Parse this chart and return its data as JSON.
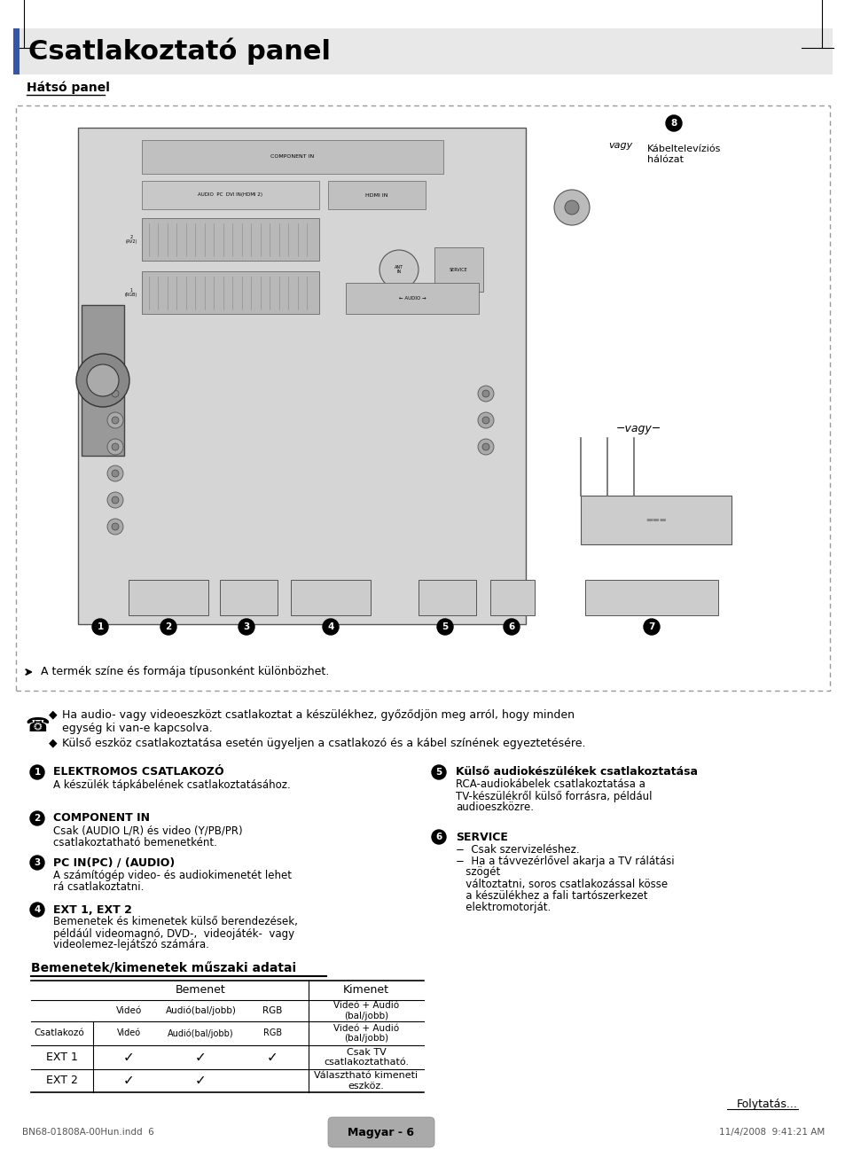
{
  "title": "Csatlakoztató panel",
  "bg_color": "#ffffff",
  "section_label": "Hátsó panel",
  "note_line1": "Ha audio- vagy videoeszközt csatlakoztat a készülékhez, győződjön meg arról, hogy minden",
  "note_line2": "egység ki van-e kapcsolva.",
  "note_line3": "Külső eszköz csatlakoztatása esetén ügyeljen a csatlakozó és a kábel színének egyeztetésére.",
  "items_left": [
    {
      "num": "1",
      "bold": "ELEKTROMOS CSATLAKOZÓ",
      "text": "A készülék tápkábelének csatlakoztatásához."
    },
    {
      "num": "2",
      "bold": "COMPONENT IN",
      "text": "Csak (AUDIO L/R) és video (Y/PB/PR)\ncsatlakoztatható bemenetként."
    },
    {
      "num": "3",
      "bold": "PC IN(PC) / (AUDIO)",
      "text": "A számítógép video- és audiokimenetét lehet\nrá csatlakoztatni."
    },
    {
      "num": "4",
      "bold": "EXT 1, EXT 2",
      "text": "Bemenetek és kimenetek külső berendezések,\npéldáúl videomagnó, DVD-,  videojáték-  vagy\nvideolemez-lejátszó számára."
    }
  ],
  "items_right": [
    {
      "num": "5",
      "bold": "Külső audiokészülékek csatlakoztatása",
      "text": "RCA-audiokábelek csatlakoztatása a\nTV-készülékről külső forrásra, például\naudioeszközre."
    },
    {
      "num": "6",
      "bold": "SERVICE",
      "text": "−  Csak szervizeléshez.\n−  Ha a távvezérlővel akarja a TV rálátási\n   szögét\n   változtatni, soros csatlakozással kösse\n   a készülékhez a fali tartószerkezet\n   elektromotorját."
    }
  ],
  "table_title": "Bemenetek/kimenetek műszaki adatai",
  "table_col1": "Csatlakozó",
  "table_col2_header": "Bemenet",
  "table_col3_header": "Kimenet",
  "table_sub_cols": [
    "Videó",
    "Audió(bal/jobb)",
    "RGB"
  ],
  "table_sub_col3": "Videó + Audió\n(bal/jobb)",
  "table_rows": [
    {
      "label": "EXT 1",
      "checks": [
        "✓",
        "✓",
        "✓"
      ],
      "kimenet": "Csak TV\ncsatlakoztatható."
    },
    {
      "label": "EXT 2",
      "checks": [
        "✓",
        "✓",
        ""
      ],
      "kimenet": "Választható kimeneti\neszköz."
    }
  ],
  "csatl_row": {
    "label": "Csatlakozó",
    "sub": "Videó Audió(bal/jobb) RGB",
    "kimenet": "Videó + Audió\n(bal/jobb)"
  },
  "footer_left": "BN68-01808A-00Hun.indd  6",
  "footer_right": "11/4/2008  9:41:21 AM",
  "footer_page": "Magyar - 6",
  "folyatas": "Folytatás..."
}
